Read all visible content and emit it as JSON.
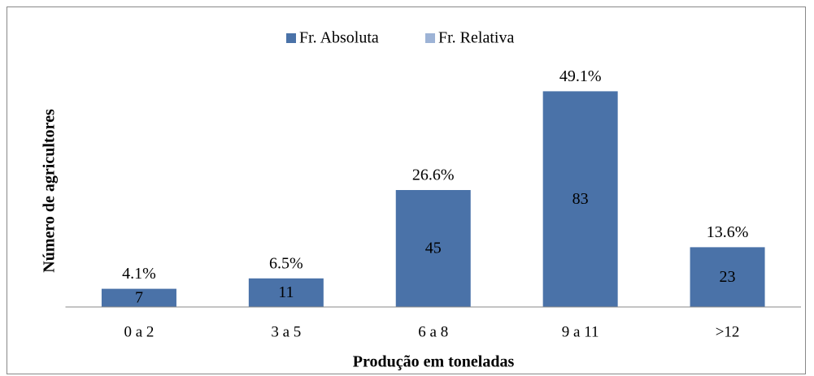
{
  "chart_data": {
    "type": "bar",
    "categories": [
      "0 a 2",
      "3 a 5",
      "6 a 8",
      "9 a 11",
      ">12"
    ],
    "series": [
      {
        "name": "Fr. Absoluta",
        "color": "#4a72a8",
        "values": [
          7,
          11,
          45,
          83,
          23
        ]
      },
      {
        "name": "Fr. Relativa",
        "color": "#9db3d6",
        "values": [
          4.1,
          6.5,
          26.6,
          49.1,
          13.6
        ],
        "value_labels": [
          "4.1%",
          "6.5%",
          "26.6%",
          "49.1%",
          "13.6%"
        ]
      }
    ],
    "ylim": [
      0,
      90
    ],
    "xlabel": "Produção em toneladas",
    "ylabel": "Número de agricultores",
    "legend": "top"
  }
}
